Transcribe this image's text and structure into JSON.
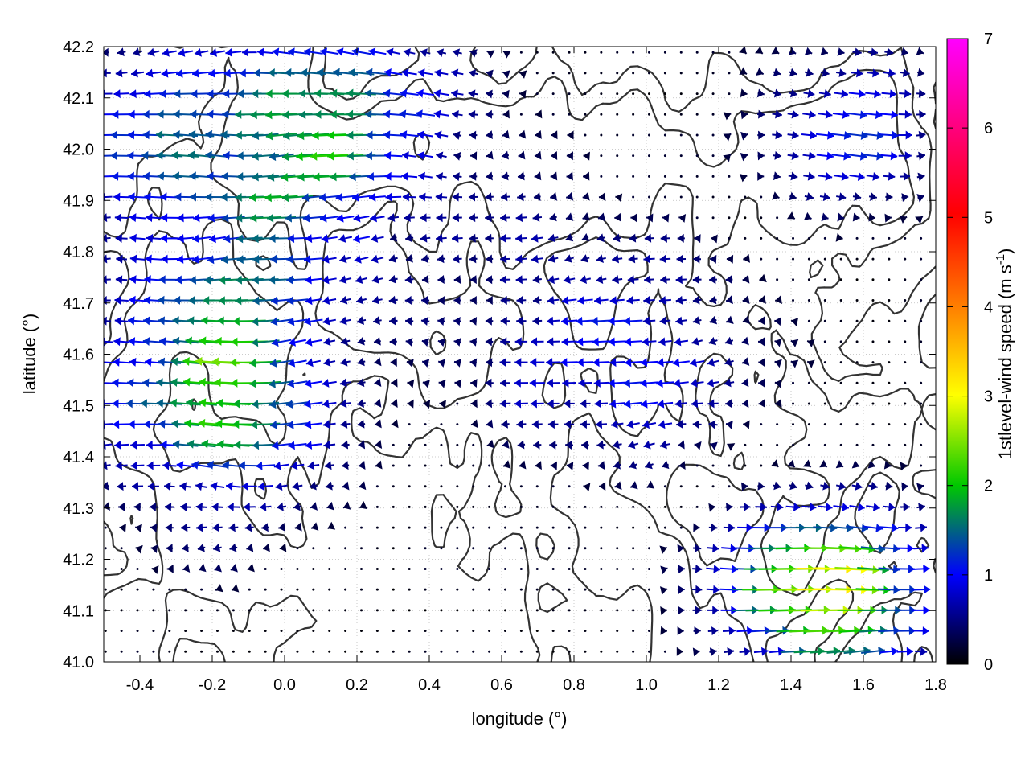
{
  "chart_data": {
    "type": "vector-field",
    "xlabel": "longitude (°)",
    "ylabel": "latitude (°)",
    "xlim": [
      -0.5,
      1.8
    ],
    "ylim": [
      41.0,
      42.2
    ],
    "xticks": [
      "-0.4",
      "-0.2",
      "0.0",
      "0.2",
      "0.4",
      "0.6",
      "0.8",
      "1.0",
      "1.2",
      "1.4",
      "1.6",
      "1.8"
    ],
    "yticks": [
      "41.0",
      "41.1",
      "41.2",
      "41.3",
      "41.4",
      "41.5",
      "41.6",
      "41.7",
      "41.8",
      "41.9",
      "42.0",
      "42.1",
      "42.2"
    ],
    "grid": true,
    "colorbar": {
      "label": "1stlevel-wind speed (m s",
      "label_sup": "-1",
      "label_tail": ")",
      "range": [
        0,
        7
      ],
      "ticks": [
        "0",
        "1",
        "2",
        "3",
        "4",
        "5",
        "6",
        "7"
      ],
      "colormap": [
        "#000000",
        "#0000ff",
        "#00c800",
        "#ffff00",
        "#ff8000",
        "#ff0000",
        "#ff00ff"
      ]
    },
    "vector_field": {
      "wind_regions": [
        {
          "region": "north-west",
          "lon": [
            -0.5,
            0.5
          ],
          "lat": [
            41.8,
            42.2
          ],
          "direction": "westward",
          "speed": 2.4
        },
        {
          "region": "west",
          "lon": [
            -0.5,
            0.1
          ],
          "lat": [
            41.3,
            41.8
          ],
          "direction": "westward",
          "speed": 2.2
        },
        {
          "region": "centre",
          "lon": [
            0.5,
            1.3
          ],
          "lat": [
            41.4,
            41.8
          ],
          "direction": "westward",
          "speed": 1.4
        },
        {
          "region": "south-east",
          "lon": [
            1.2,
            1.8
          ],
          "lat": [
            41.0,
            41.3
          ],
          "direction": "eastward",
          "speed": 2.8
        },
        {
          "region": "north-east",
          "lon": [
            1.3,
            1.8
          ],
          "lat": [
            41.9,
            42.2
          ],
          "direction": "eastward",
          "speed": 1.3
        }
      ]
    },
    "contours": "terrain elevation contour lines (dark grey)"
  }
}
